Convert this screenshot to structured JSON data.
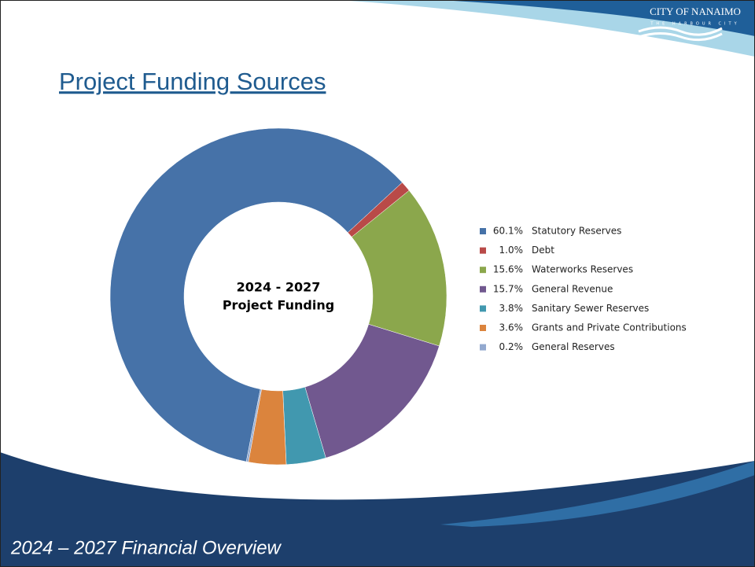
{
  "logo": {
    "name": "CITY OF NANAIMO",
    "tagline": "THE HARBOUR CITY"
  },
  "footer": "2024 – 2027 Financial Overview",
  "chart_data": {
    "type": "donut",
    "title": "Project Funding Sources",
    "center_label": [
      "2024 - 2027",
      "Project Funding"
    ],
    "categories": [
      "Statutory Reserves",
      "Debt",
      "Waterworks Reserves",
      "General Revenue",
      "Sanitary Sewer Reserves",
      "Grants and Private Contributions",
      "General Reserves"
    ],
    "values": [
      60.1,
      1.0,
      15.6,
      15.7,
      3.8,
      3.6,
      0.2
    ],
    "value_labels": [
      "60.1%",
      "1.0%",
      "15.6%",
      "15.7%",
      "3.8%",
      "3.6%",
      "0.2%"
    ],
    "colors": [
      "#4672a8",
      "#b94a48",
      "#8ba74c",
      "#71588f",
      "#4198af",
      "#db843d",
      "#93a9cf"
    ],
    "legend": "right"
  }
}
